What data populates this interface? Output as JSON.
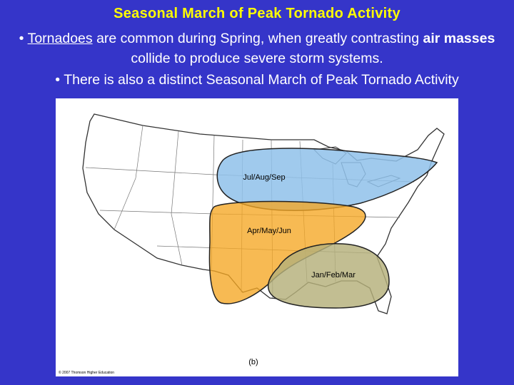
{
  "title": "Seasonal March of Peak Tornado Activity",
  "bullets": [
    {
      "segments": [
        {
          "text": "Tornadoes",
          "style": "underline"
        },
        {
          "text": " are common during Spring, when greatly contrasting "
        },
        {
          "text": "air masses",
          "style": "bold"
        },
        {
          "text": " collide to produce severe storm systems."
        }
      ]
    },
    {
      "segments": [
        {
          "text": "There is also a distinct Seasonal March of Peak Tornado Activity"
        }
      ]
    }
  ],
  "map": {
    "regions": [
      {
        "label": "Jul/Aug/Sep"
      },
      {
        "label": "Apr/May/Jun"
      },
      {
        "label": "Jan/Feb/Mar"
      }
    ],
    "caption": "(b)",
    "credit": "© 2007 Thomson Higher Education"
  }
}
